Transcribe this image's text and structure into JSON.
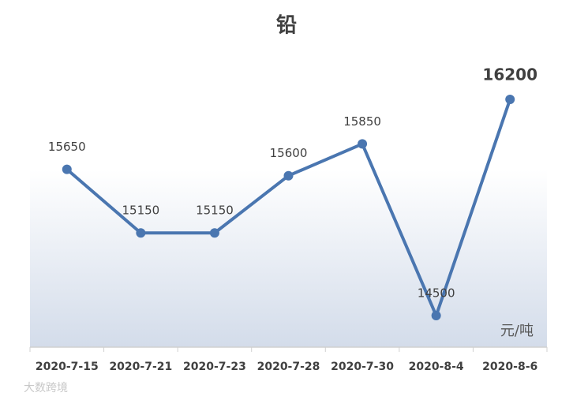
{
  "chart_data": {
    "type": "line",
    "title": "铅",
    "categories": [
      "2020-7-15",
      "2020-7-21",
      "2020-7-23",
      "2020-7-28",
      "2020-7-30",
      "2020-8-4",
      "2020-8-6"
    ],
    "series": [
      {
        "name": "铅",
        "color": "#4a76b0",
        "values": [
          15650,
          15150,
          15150,
          15600,
          15850,
          14500,
          16200
        ]
      }
    ],
    "unit": "元/吨",
    "watermark": "大数跨境"
  }
}
